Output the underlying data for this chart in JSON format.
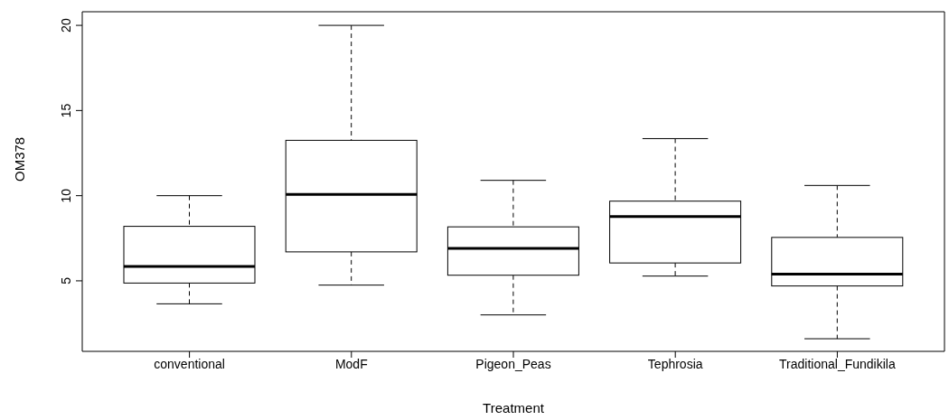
{
  "chart_data": {
    "type": "box",
    "xlabel": "Treatment",
    "ylabel": "OM378",
    "categories": [
      "conventional",
      "ModF",
      "Pigeon_Peas",
      "Tephrosia",
      "Traditional_Fundikila"
    ],
    "boxes": [
      {
        "low": 3.65,
        "q1": 4.87,
        "median": 5.84,
        "q3": 8.2,
        "high": 10.0
      },
      {
        "low": 4.75,
        "q1": 6.7,
        "median": 10.07,
        "q3": 13.25,
        "high": 20.0
      },
      {
        "low": 3.0,
        "q1": 5.33,
        "median": 6.9,
        "q3": 8.17,
        "high": 10.9
      },
      {
        "low": 5.28,
        "q1": 6.05,
        "median": 8.78,
        "q3": 9.68,
        "high": 13.35
      },
      {
        "low": 1.6,
        "q1": 4.7,
        "median": 5.4,
        "q3": 7.55,
        "high": 10.6
      }
    ],
    "color": "#000000",
    "ylim": [
      0.86,
      20.8
    ],
    "yticks": [
      5,
      10,
      15,
      20
    ],
    "grid": false,
    "legend": false
  }
}
